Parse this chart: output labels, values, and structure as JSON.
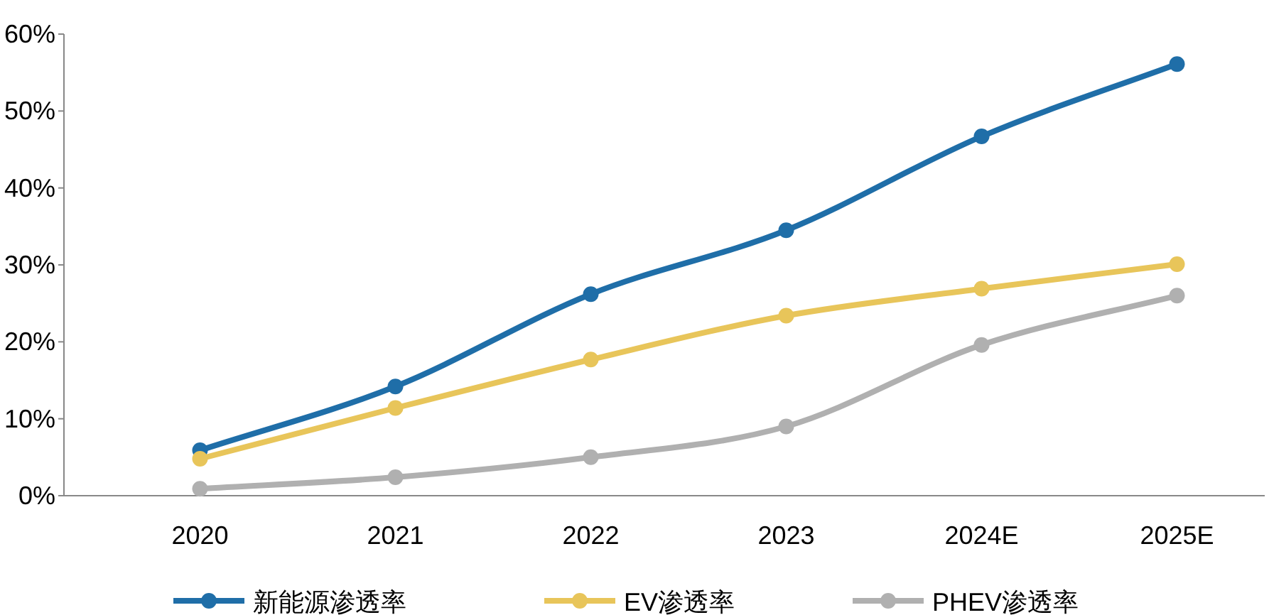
{
  "chart_data": {
    "type": "line",
    "categories": [
      "2020",
      "2021",
      "2022",
      "2023",
      "2024E",
      "2025E"
    ],
    "series": [
      {
        "name": "新能源渗透率",
        "color": "#1f6ea8",
        "values": [
          5.9,
          14.2,
          26.2,
          34.5,
          46.7,
          56.1
        ]
      },
      {
        "name": "EV渗透率",
        "color": "#e8c55a",
        "values": [
          4.8,
          11.4,
          17.7,
          23.4,
          26.9,
          30.1
        ]
      },
      {
        "name": "PHEV渗透率",
        "color": "#b0b0b0",
        "values": [
          0.9,
          2.4,
          5.0,
          9.0,
          19.6,
          26.0
        ]
      }
    ],
    "ylim": [
      0,
      60
    ],
    "yticks": [
      {
        "value": 0,
        "label": "0%"
      },
      {
        "value": 10,
        "label": "10%"
      },
      {
        "value": 20,
        "label": "20%"
      },
      {
        "value": 30,
        "label": "30%"
      },
      {
        "value": 40,
        "label": "40%"
      },
      {
        "value": 50,
        "label": "50%"
      },
      {
        "value": 60,
        "label": "60%"
      }
    ],
    "marker": "circle",
    "line_style": "solid",
    "legend": "bottom",
    "grid": false
  }
}
